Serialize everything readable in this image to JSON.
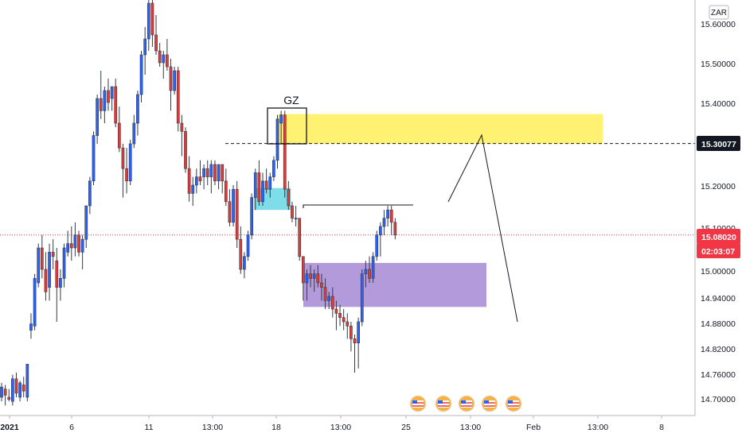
{
  "currency_badge": "ZAR",
  "chart_data": {
    "type": "candlestick",
    "instrument_currency": "ZAR",
    "y_ticks": [
      "15.60000",
      "15.50000",
      "15.40000",
      "15.20000",
      "15.10000",
      "15.00000",
      "14.94000",
      "14.88000",
      "14.82000",
      "14.76000",
      "14.70000"
    ],
    "x_ticks": [
      "2021",
      "6",
      "11",
      "13:00",
      "18",
      "13:00",
      "25",
      "13:00",
      "Feb",
      "13:00",
      "8"
    ],
    "ylim": [
      14.66,
      15.66
    ],
    "current_price": {
      "label": "15.08020",
      "countdown": "02:03:07",
      "value": 15.0802,
      "color": "#f23645"
    },
    "marked_level": {
      "label": "15.30077",
      "value": 15.30077
    },
    "annotations": {
      "gz_label": "GZ"
    },
    "zones": [
      {
        "name": "supply",
        "color": "#ffeb3b",
        "y_low": 15.3,
        "y_high": 15.372
      },
      {
        "name": "small-demand",
        "color": "#4dd0e1",
        "y_low": 15.14,
        "y_high": 15.193
      },
      {
        "name": "demand",
        "color": "#9575cd",
        "y_low": 14.915,
        "y_high": 15.015
      }
    ],
    "candles": [
      [
        14.7,
        14.735,
        14.69,
        14.725
      ],
      [
        14.72,
        14.73,
        14.68,
        14.705
      ],
      [
        14.7,
        14.72,
        14.69,
        14.695
      ],
      [
        14.69,
        14.755,
        14.68,
        14.745
      ],
      [
        14.745,
        14.76,
        14.7,
        14.71
      ],
      [
        14.7,
        14.74,
        14.69,
        14.735
      ],
      [
        14.73,
        14.75,
        14.7,
        14.715
      ],
      [
        14.7,
        14.78,
        14.69,
        14.78
      ],
      [
        14.86,
        14.9,
        14.84,
        14.875
      ],
      [
        14.87,
        14.99,
        14.86,
        14.98
      ],
      [
        14.97,
        15.06,
        14.96,
        15.05
      ],
      [
        15.05,
        15.08,
        14.98,
        15.0
      ],
      [
        15.0,
        15.04,
        14.93,
        14.95
      ],
      [
        14.96,
        15.06,
        14.93,
        15.04
      ],
      [
        15.04,
        15.07,
        15.0,
        15.03
      ],
      [
        15.02,
        15.05,
        14.88,
        14.96
      ],
      [
        14.96,
        15.0,
        14.93,
        14.98
      ],
      [
        14.98,
        15.06,
        14.96,
        15.05
      ],
      [
        15.04,
        15.09,
        15.03,
        15.06
      ],
      [
        15.06,
        15.1,
        15.02,
        15.05
      ],
      [
        15.05,
        15.11,
        15.03,
        15.08
      ],
      [
        15.08,
        15.09,
        15.03,
        15.04
      ],
      [
        15.04,
        15.08,
        15.0,
        15.07
      ],
      [
        15.07,
        15.15,
        15.05,
        15.15
      ],
      [
        15.15,
        15.22,
        15.13,
        15.21
      ],
      [
        15.21,
        15.33,
        15.2,
        15.32
      ],
      [
        15.32,
        15.42,
        15.3,
        15.41
      ],
      [
        15.41,
        15.48,
        15.36,
        15.38
      ],
      [
        15.38,
        15.44,
        15.35,
        15.43
      ],
      [
        15.43,
        15.46,
        15.38,
        15.4
      ],
      [
        15.41,
        15.44,
        15.38,
        15.44
      ],
      [
        15.44,
        15.46,
        15.34,
        15.35
      ],
      [
        15.35,
        15.39,
        15.28,
        15.29
      ],
      [
        15.29,
        15.3,
        15.17,
        15.24
      ],
      [
        15.24,
        15.29,
        15.18,
        15.21
      ],
      [
        15.21,
        15.31,
        15.2,
        15.3
      ],
      [
        15.3,
        15.37,
        15.29,
        15.35
      ],
      [
        15.35,
        15.43,
        15.32,
        15.42
      ],
      [
        15.42,
        15.53,
        15.4,
        15.52
      ],
      [
        15.52,
        15.59,
        15.47,
        15.56
      ],
      [
        15.56,
        15.66,
        15.53,
        15.65
      ],
      [
        15.65,
        15.66,
        15.54,
        15.57
      ],
      [
        15.57,
        15.62,
        15.52,
        15.53
      ],
      [
        15.53,
        15.55,
        15.49,
        15.5
      ],
      [
        15.5,
        15.53,
        15.46,
        15.52
      ],
      [
        15.52,
        15.56,
        15.48,
        15.49
      ],
      [
        15.49,
        15.51,
        15.38,
        15.43
      ],
      [
        15.43,
        15.49,
        15.42,
        15.48
      ],
      [
        15.48,
        15.49,
        15.33,
        15.35
      ],
      [
        15.35,
        15.37,
        15.27,
        15.33
      ],
      [
        15.33,
        15.34,
        15.23,
        15.24
      ],
      [
        15.24,
        15.27,
        15.16,
        15.18
      ],
      [
        15.18,
        15.22,
        15.15,
        15.2
      ],
      [
        15.2,
        15.24,
        15.18,
        15.22
      ],
      [
        15.22,
        15.26,
        15.2,
        15.21
      ],
      [
        15.22,
        15.25,
        15.19,
        15.24
      ],
      [
        15.24,
        15.26,
        15.2,
        15.22
      ],
      [
        15.22,
        15.26,
        15.18,
        15.25
      ],
      [
        15.25,
        15.26,
        15.2,
        15.21
      ],
      [
        15.21,
        15.25,
        15.19,
        15.25
      ],
      [
        15.25,
        15.25,
        15.18,
        15.21
      ],
      [
        15.21,
        15.24,
        15.15,
        15.16
      ],
      [
        15.16,
        15.19,
        15.1,
        15.11
      ],
      [
        15.11,
        15.2,
        15.1,
        15.19
      ],
      [
        15.19,
        15.21,
        15.05,
        15.07
      ],
      [
        15.07,
        15.1,
        14.99,
        15.0
      ],
      [
        15.0,
        15.04,
        14.98,
        15.03
      ],
      [
        15.03,
        15.09,
        15.02,
        15.08
      ],
      [
        15.08,
        15.18,
        15.07,
        15.17
      ],
      [
        15.17,
        15.24,
        15.14,
        15.23
      ],
      [
        15.23,
        15.26,
        15.15,
        15.16
      ],
      [
        15.16,
        15.23,
        15.15,
        15.21
      ],
      [
        15.21,
        15.24,
        15.18,
        15.19
      ],
      [
        15.19,
        15.23,
        15.17,
        15.22
      ],
      [
        15.22,
        15.27,
        15.21,
        15.26
      ],
      [
        15.26,
        15.37,
        15.24,
        15.36
      ],
      [
        15.35,
        15.38,
        15.3,
        15.37
      ],
      [
        15.37,
        15.38,
        15.17,
        15.19
      ],
      [
        15.19,
        15.21,
        15.14,
        15.15
      ],
      [
        15.15,
        15.16,
        15.11,
        15.12
      ],
      [
        15.12,
        15.15,
        15.1,
        15.12
      ],
      [
        15.12,
        15.12,
        15.02,
        15.03
      ],
      [
        15.03,
        15.03,
        14.93,
        14.97
      ],
      [
        14.97,
        15.0,
        14.93,
        14.99
      ],
      [
        14.99,
        15.01,
        14.96,
        14.98
      ],
      [
        14.98,
        15.0,
        14.95,
        14.99
      ],
      [
        14.99,
        15.01,
        14.96,
        14.97
      ],
      [
        14.97,
        14.99,
        14.93,
        14.96
      ],
      [
        14.96,
        14.98,
        14.91,
        14.93
      ],
      [
        14.93,
        14.95,
        14.91,
        14.94
      ],
      [
        14.94,
        14.96,
        14.89,
        14.91
      ],
      [
        14.91,
        14.93,
        14.86,
        14.9
      ],
      [
        14.9,
        14.92,
        14.87,
        14.89
      ],
      [
        14.89,
        14.91,
        14.86,
        14.88
      ],
      [
        14.88,
        14.9,
        14.84,
        14.87
      ],
      [
        14.87,
        14.88,
        14.81,
        14.84
      ],
      [
        14.84,
        14.85,
        14.76,
        14.83
      ],
      [
        14.83,
        14.89,
        14.77,
        14.88
      ],
      [
        14.88,
        15.0,
        14.87,
        14.99
      ],
      [
        14.99,
        15.02,
        14.96,
        15.0
      ],
      [
        15.0,
        15.03,
        14.97,
        14.98
      ],
      [
        14.98,
        15.04,
        14.97,
        15.03
      ],
      [
        15.03,
        15.09,
        15.02,
        15.08
      ],
      [
        15.08,
        15.11,
        15.03,
        15.1
      ],
      [
        15.1,
        15.14,
        15.08,
        15.12
      ],
      [
        15.12,
        15.15,
        15.1,
        15.14
      ],
      [
        15.14,
        15.15,
        15.08,
        15.11
      ],
      [
        15.11,
        15.12,
        15.07,
        15.08
      ]
    ]
  }
}
